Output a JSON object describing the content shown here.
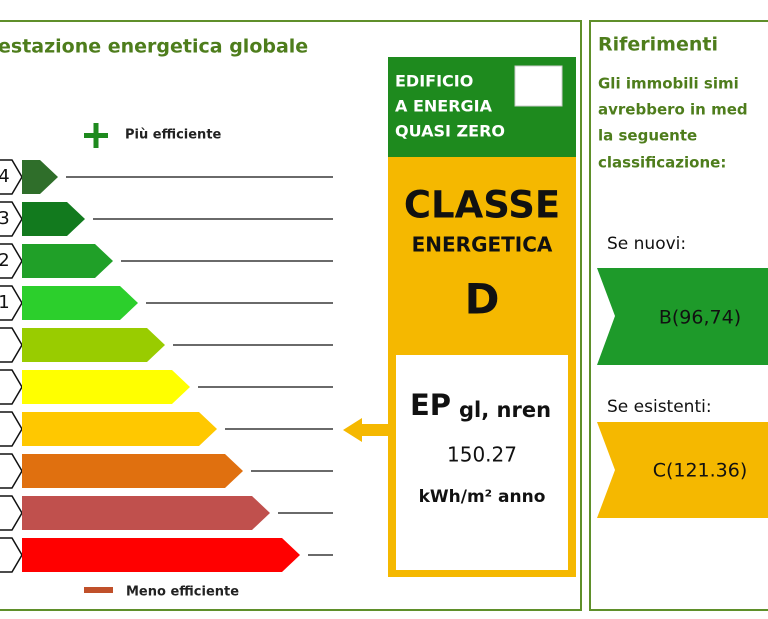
{
  "left_panel": {
    "title": "estazione energetica globale",
    "scale": {
      "top_label": "Più efficiente",
      "bottom_label": "Meno efficiente",
      "visible_codes": [
        "4",
        "3",
        "2",
        "1"
      ]
    },
    "nzeb": {
      "lines": [
        "EDIFICIO",
        "A ENERGIA",
        "QUASI ZERO"
      ]
    },
    "class_box": {
      "heading_1": "CLASSE",
      "heading_2": "ENERGETICA",
      "class": "D",
      "ep_label": "EP",
      "ep_subscript": "gl, nren",
      "ep_value": 150.27,
      "ep_unit": "kWh/m² anno"
    }
  },
  "right_panel": {
    "title": "Riferimenti",
    "description_lines": [
      "Gli immobili simi",
      "avrebbero in med",
      "la seguente",
      "classificazione:"
    ],
    "new_label": "Se nuovi:",
    "new_value": "B(96,74)",
    "existing_label": "Se esistenti:",
    "existing_value": "C(121.36)"
  }
}
